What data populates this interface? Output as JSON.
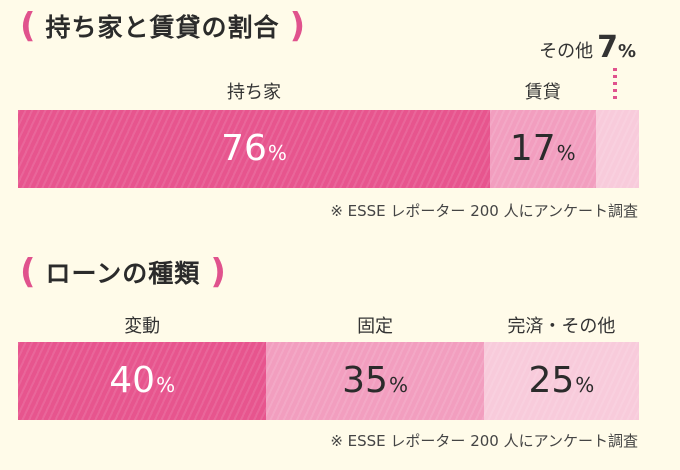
{
  "chart_data": [
    {
      "type": "bar",
      "orientation": "horizontal-stacked",
      "title": "持ち家と賃貸の割合",
      "categories": [
        "持ち家",
        "賃貸",
        "その他"
      ],
      "values": [
        76,
        17,
        7
      ],
      "value_suffix": "%",
      "colors": [
        "#e7558e",
        "#f29ebf",
        "#f8cbdb"
      ],
      "note": "※ ESSE レポーター 200 人にアンケート調査"
    },
    {
      "type": "bar",
      "orientation": "horizontal-stacked",
      "title": "ローンの種類",
      "categories": [
        "変動",
        "固定",
        "完済・その他"
      ],
      "values": [
        40,
        35,
        25
      ],
      "value_suffix": "%",
      "colors": [
        "#e7558e",
        "#f29ebf",
        "#f8cbdb"
      ],
      "note": "※ ESSE レポーター 200 人にアンケート調査"
    }
  ],
  "paren_left": "(",
  "paren_right": ")"
}
